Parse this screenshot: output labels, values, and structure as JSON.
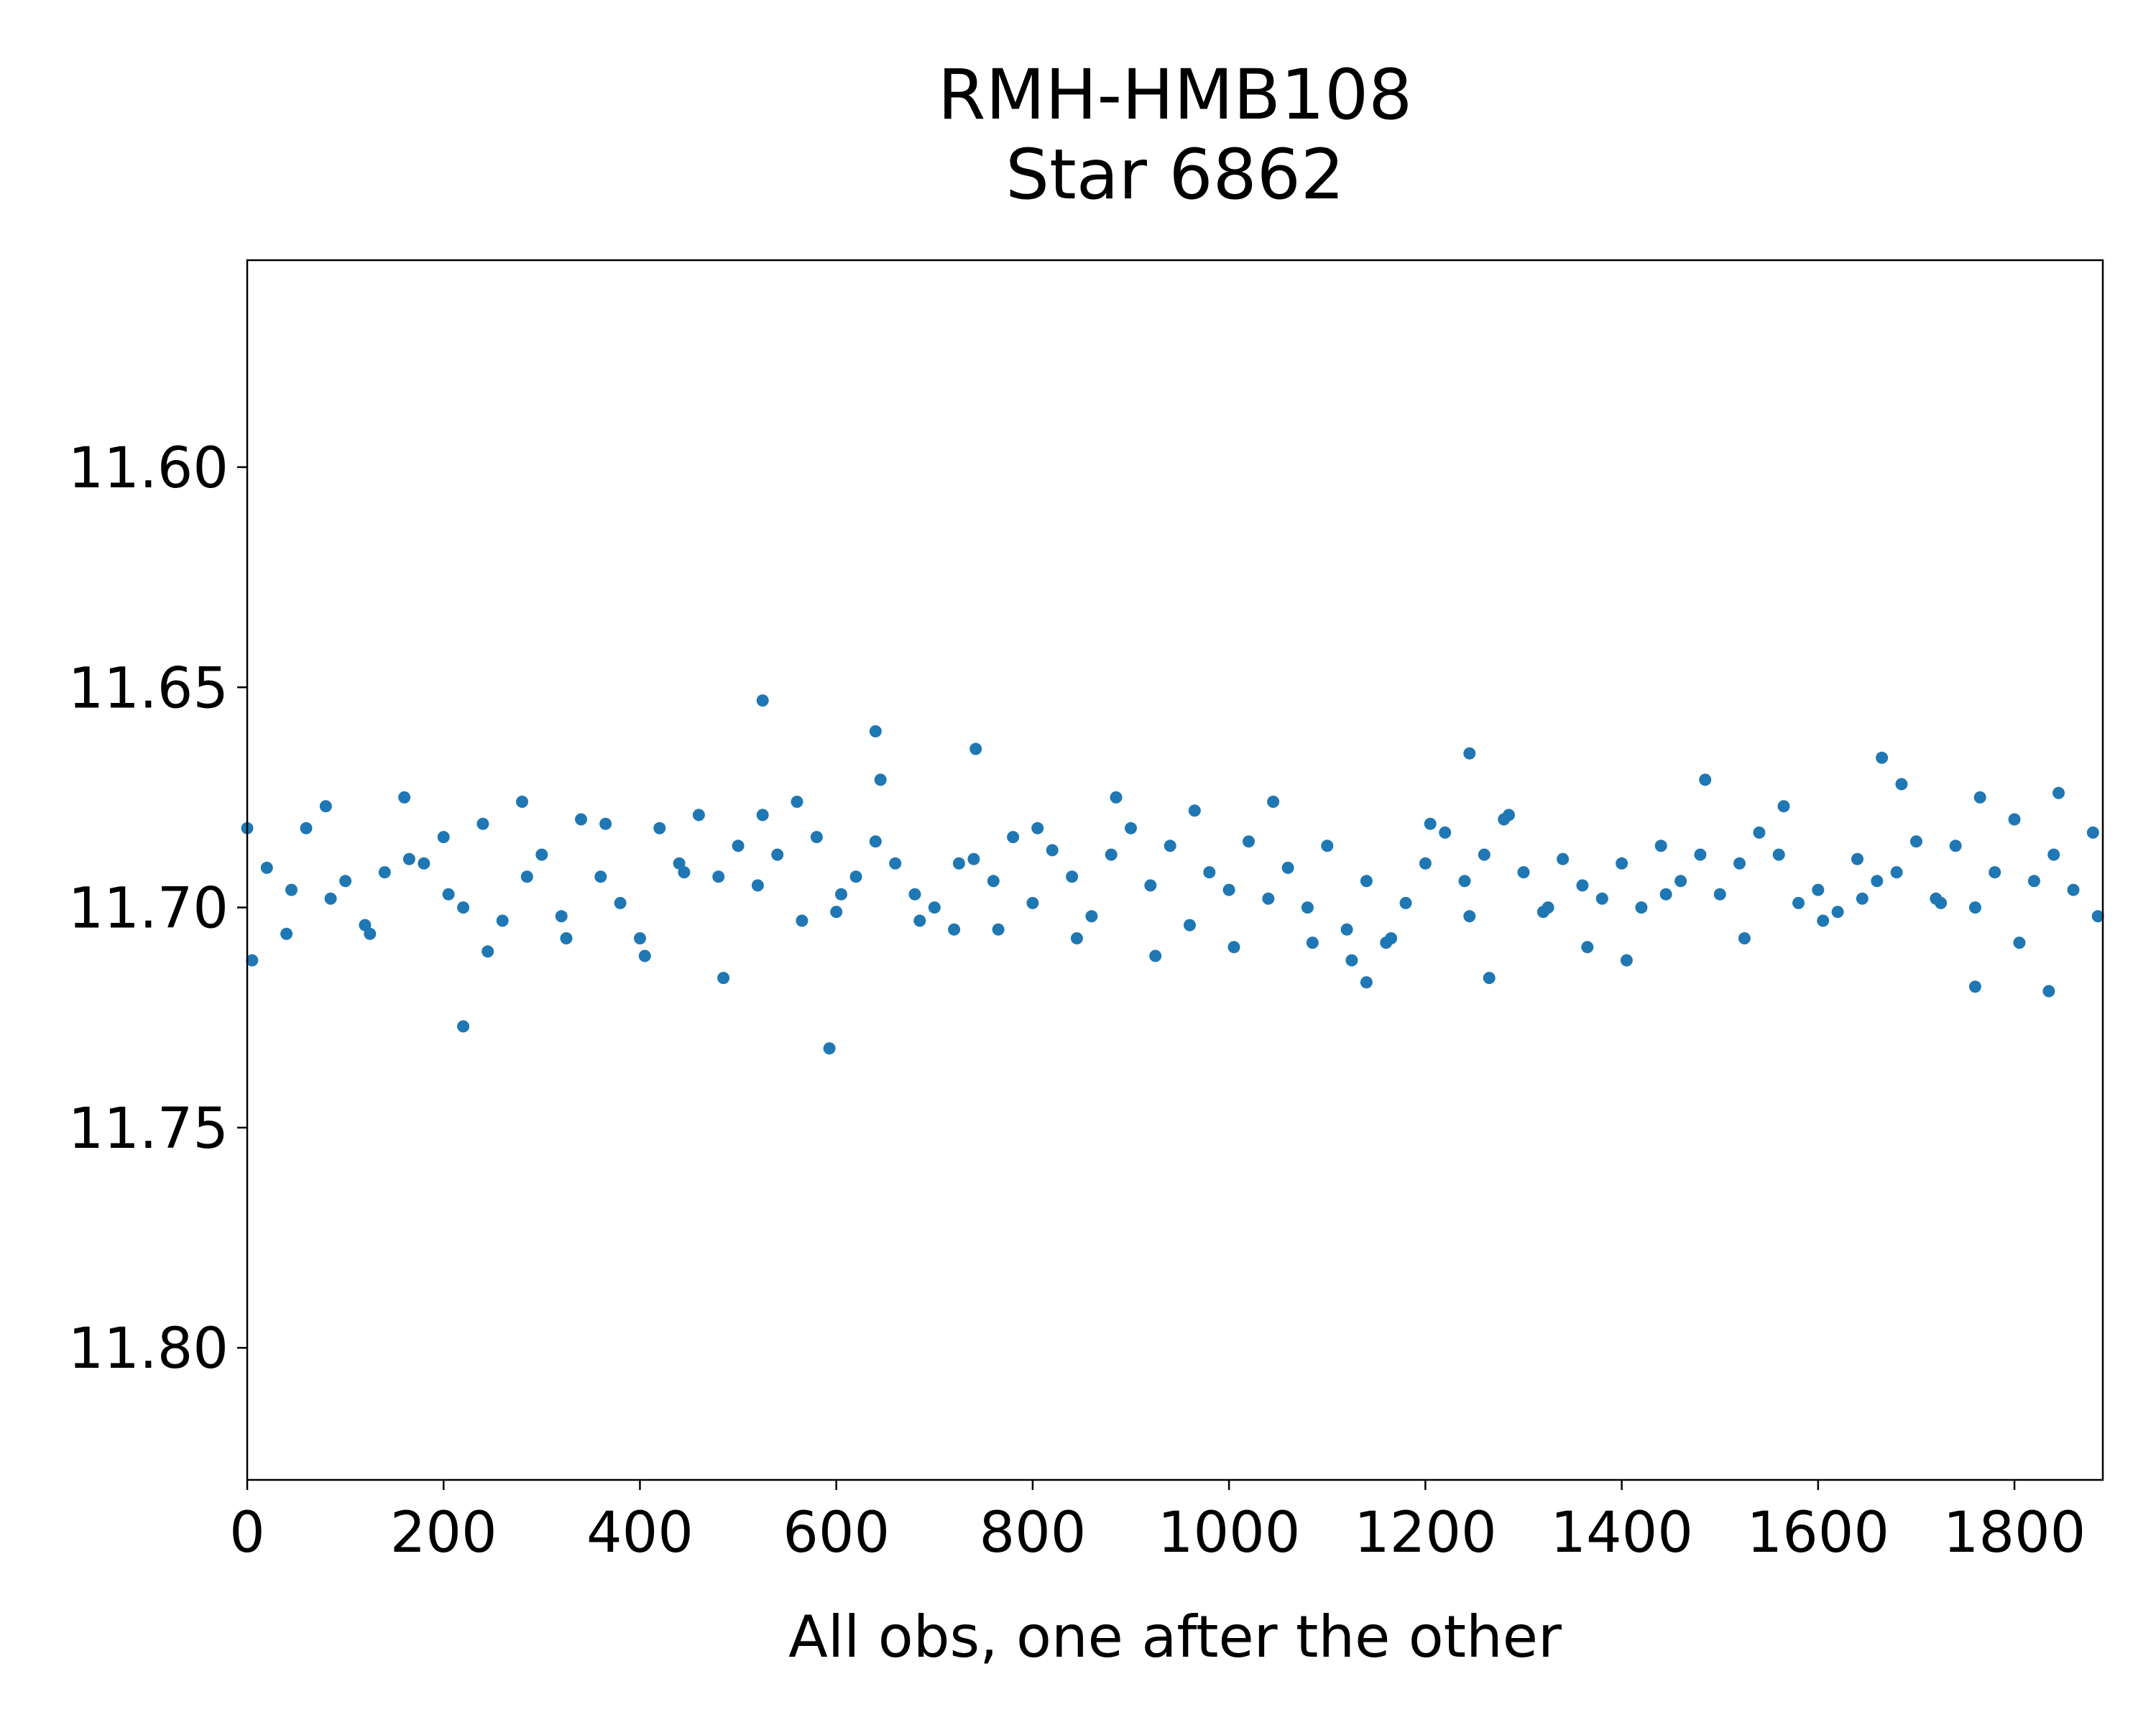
{
  "chart_data": {
    "type": "scatter",
    "title": "RMH-HMB108",
    "subtitle": "Star 6862",
    "xlabel": "All obs, one after the other",
    "ylabel": "",
    "xlim": [
      0,
      1890
    ],
    "ylim": [
      11.83,
      11.553
    ],
    "y_inverted": true,
    "grid": false,
    "x_ticks": [
      0,
      200,
      400,
      600,
      800,
      1000,
      1200,
      1400,
      1600,
      1800
    ],
    "x_tick_labels": [
      "0",
      "200",
      "400",
      "600",
      "800",
      "1000",
      "1200",
      "1400",
      "1600",
      "1800"
    ],
    "y_ticks": [
      11.6,
      11.65,
      11.7,
      11.75,
      11.8
    ],
    "y_tick_labels": [
      "11.60",
      "11.65",
      "11.70",
      "11.75",
      "11.80"
    ],
    "marker_color": "#1f77b4",
    "series": [
      {
        "x": [
          0,
          20,
          40,
          60,
          80,
          100,
          120,
          140,
          160,
          180,
          200,
          220,
          240,
          260,
          280,
          300,
          320,
          340,
          360,
          380,
          400,
          420,
          440,
          460,
          480,
          500,
          520,
          540,
          560,
          580,
          600,
          620,
          640,
          660,
          680,
          700,
          720,
          740,
          760,
          780,
          800,
          820,
          840,
          860,
          880,
          900,
          920,
          940,
          960,
          980,
          1000,
          1020,
          1040,
          1060,
          1080,
          1100,
          1120,
          1140,
          1160,
          1180,
          1200,
          1220,
          1240,
          1260,
          1280,
          1300,
          1320,
          1340,
          1360,
          1380,
          1400,
          1420,
          1440,
          1460,
          1480,
          1500,
          1520,
          1540,
          1560,
          1580,
          1600,
          1620,
          1640,
          1660,
          1680,
          1700,
          1720,
          1740,
          1760,
          1780,
          1800,
          1820,
          1840,
          1860,
          1880,
          5,
          45,
          85,
          125,
          165,
          205,
          245,
          285,
          325,
          365,
          405,
          445,
          485,
          525,
          565,
          605,
          645,
          685,
          725,
          765,
          805,
          845,
          885,
          925,
          965,
          1005,
          1045,
          1085,
          1125,
          1165,
          1205,
          1245,
          1285,
          1325,
          1365,
          1405,
          1445,
          1485,
          1525,
          1565,
          1605,
          1645,
          1685,
          1725,
          1765,
          1805,
          1845,
          1885,
          220,
          525,
          593,
          640,
          742,
          1245,
          1665,
          1835,
          1760,
          1140,
          1265
        ],
        "y": [
          11.682,
          11.691,
          11.706,
          11.682,
          11.677,
          11.694,
          11.704,
          11.692,
          11.675,
          11.69,
          11.684,
          11.7,
          11.681,
          11.703,
          11.676,
          11.688,
          11.702,
          11.68,
          11.693,
          11.699,
          11.707,
          11.682,
          11.69,
          11.679,
          11.693,
          11.686,
          11.695,
          11.688,
          11.676,
          11.684,
          11.701,
          11.693,
          11.685,
          11.69,
          11.697,
          11.7,
          11.705,
          11.689,
          11.694,
          11.684,
          11.699,
          11.687,
          11.693,
          11.702,
          11.688,
          11.682,
          11.695,
          11.686,
          11.704,
          11.692,
          11.696,
          11.685,
          11.698,
          11.691,
          11.7,
          11.686,
          11.705,
          11.694,
          11.708,
          11.699,
          11.69,
          11.683,
          11.694,
          11.688,
          11.68,
          11.692,
          11.701,
          11.689,
          11.695,
          11.698,
          11.69,
          11.7,
          11.686,
          11.694,
          11.688,
          11.697,
          11.69,
          11.683,
          11.688,
          11.699,
          11.696,
          11.701,
          11.689,
          11.694,
          11.692,
          11.685,
          11.698,
          11.686,
          11.7,
          11.692,
          11.68,
          11.694,
          11.688,
          11.696,
          11.683,
          11.712,
          11.696,
          11.698,
          11.706,
          11.689,
          11.697,
          11.71,
          11.693,
          11.707,
          11.681,
          11.711,
          11.692,
          11.716,
          11.679,
          11.703,
          11.697,
          11.671,
          11.703,
          11.69,
          11.705,
          11.682,
          11.707,
          11.675,
          11.711,
          11.678,
          11.709,
          11.676,
          11.708,
          11.712,
          11.707,
          11.681,
          11.702,
          11.679,
          11.7,
          11.709,
          11.712,
          11.697,
          11.671,
          11.707,
          11.677,
          11.703,
          11.698,
          11.672,
          11.699,
          11.675,
          11.708,
          11.674,
          11.702,
          11.727,
          11.653,
          11.732,
          11.66,
          11.664,
          11.665,
          11.666,
          11.719,
          11.718,
          11.717,
          11.716
        ],
        "label": ""
      }
    ]
  }
}
